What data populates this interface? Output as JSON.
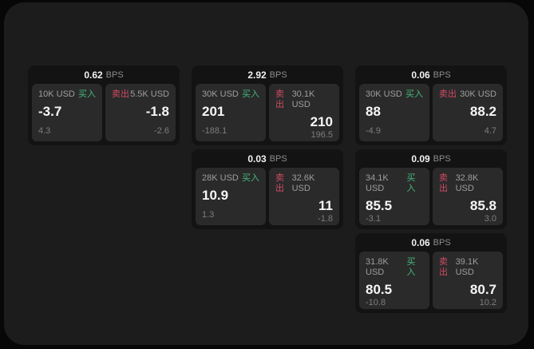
{
  "labels": {
    "bps": "BPS",
    "buy": "买入",
    "sell": "卖出"
  },
  "colors": {
    "background": "#070707",
    "panel": "#1c1c1d",
    "card": "#131314",
    "tile": "#2a2a2b",
    "buy_green": "#46b878",
    "sell_red": "#d14b60",
    "value_white": "#f7f7f7",
    "muted_gray": "#8d8d8d"
  },
  "cards": [
    {
      "bps_value": "0.62",
      "buy": {
        "amount": "10K USD",
        "value": "-3.7",
        "change": "4.3"
      },
      "sell": {
        "amount": "5.5K USD",
        "value": "-1.8",
        "change": "-2.6"
      }
    },
    {
      "bps_value": "2.92",
      "buy": {
        "amount": "30K USD",
        "value": "201",
        "change": "-188.1"
      },
      "sell": {
        "amount": "30.1K USD",
        "value": "210",
        "change": "196.5"
      }
    },
    {
      "bps_value": "0.06",
      "buy": {
        "amount": "30K USD",
        "value": "88",
        "change": "-4.9"
      },
      "sell": {
        "amount": "30K USD",
        "value": "88.2",
        "change": "4.7"
      }
    },
    {
      "bps_value": "0.03",
      "buy": {
        "amount": "28K USD",
        "value": "10.9",
        "change": "1.3"
      },
      "sell": {
        "amount": "32.6K USD",
        "value": "11",
        "change": "-1.8"
      }
    },
    {
      "bps_value": "0.09",
      "buy": {
        "amount": "34.1K USD",
        "value": "85.5",
        "change": "-3.1"
      },
      "sell": {
        "amount": "32.8K USD",
        "value": "85.8",
        "change": "3.0"
      }
    },
    {
      "bps_value": "0.06",
      "buy": {
        "amount": "31.8K USD",
        "value": "80.5",
        "change": "-10.8"
      },
      "sell": {
        "amount": "39.1K USD",
        "value": "80.7",
        "change": "10.2"
      }
    }
  ]
}
